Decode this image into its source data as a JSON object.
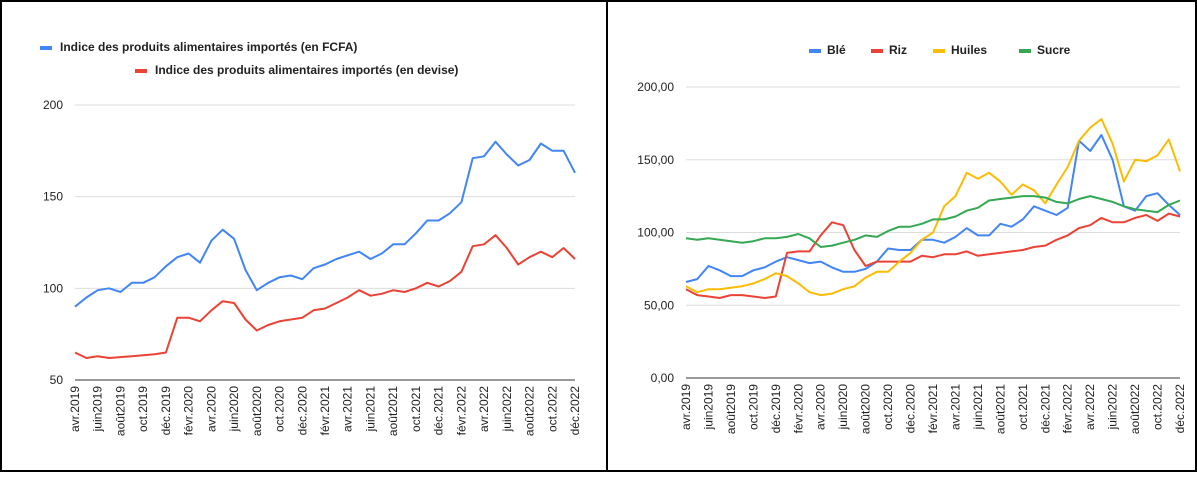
{
  "chart_data": [
    {
      "type": "line",
      "grid": true,
      "legend": "top-left",
      "categories": [
        "avr.2019",
        null,
        "juin2019",
        null,
        "août2019",
        null,
        "oct.2019",
        null,
        "déc.2019",
        null,
        "févr.2020",
        null,
        "avr.2020",
        null,
        "juin2020",
        null,
        "août2020",
        null,
        "oct.2020",
        null,
        "déc.2020",
        null,
        "févr.2021",
        null,
        "avr.2021",
        null,
        "juin2021",
        null,
        "août2021",
        null,
        "oct.2021",
        null,
        "déc.2021",
        null,
        "févr.2022",
        null,
        "avr.2022",
        null,
        "juin2022",
        null,
        "août2022",
        null,
        "oct.2022",
        null,
        "déc.2022"
      ],
      "ylim": [
        50,
        200
      ],
      "yticks": [
        50,
        100,
        150,
        200
      ],
      "series": [
        {
          "name": "Indice des produits alimentaires importés (en FCFA)",
          "color": "#4285f4",
          "values": [
            90,
            95,
            99,
            100,
            98,
            103,
            103,
            106,
            112,
            117,
            119,
            114,
            126,
            132,
            127,
            110,
            99,
            103,
            106,
            107,
            105,
            111,
            113,
            116,
            118,
            120,
            116,
            119,
            124,
            124,
            130,
            137,
            137,
            141,
            147,
            171,
            172,
            180,
            173,
            167,
            170,
            179,
            175,
            175,
            163
          ]
        },
        {
          "name": "Indice des produits alimentaires importés (en devise)",
          "color": "#ea4335",
          "values": [
            65,
            62,
            63,
            62,
            62.5,
            63,
            63.5,
            64,
            65,
            84,
            84,
            82,
            88,
            93,
            92,
            83,
            77,
            80,
            82,
            83,
            84,
            88,
            89,
            92,
            95,
            99,
            96,
            97,
            99,
            98,
            100,
            103,
            101,
            104,
            109,
            123,
            124,
            129,
            122,
            113,
            117,
            120,
            117,
            122,
            116
          ]
        }
      ]
    },
    {
      "type": "line",
      "grid": true,
      "legend": "top",
      "categories": [
        "avr.2019",
        null,
        "juin2019",
        null,
        "août2019",
        null,
        "oct.2019",
        null,
        "déc.2019",
        null,
        "févr.2020",
        null,
        "avr.2020",
        null,
        "juin2020",
        null,
        "août2020",
        null,
        "oct.2020",
        null,
        "déc.2020",
        null,
        "févr.2021",
        null,
        "avr.2021",
        null,
        "juin2021",
        null,
        "août2021",
        null,
        "oct.2021",
        null,
        "déc.2021",
        null,
        "févr.2022",
        null,
        "avr.2022",
        null,
        "juin2022",
        null,
        "août2022",
        null,
        "oct.2022",
        null,
        "déc.2022"
      ],
      "ylim": [
        0,
        200
      ],
      "yticks": [
        {
          "value": 0,
          "label": "0,00"
        },
        {
          "value": 50,
          "label": "50,00"
        },
        {
          "value": 100,
          "label": "100,00"
        },
        {
          "value": 150,
          "label": "150,00"
        },
        {
          "value": 200,
          "label": "200,00"
        }
      ],
      "series": [
        {
          "name": "Blé",
          "color": "#4285f4",
          "values": [
            66,
            68,
            77,
            74,
            70,
            70,
            74,
            76,
            80,
            83,
            81,
            79,
            80,
            76,
            73,
            73,
            75,
            80,
            89,
            88,
            88,
            95,
            95,
            93,
            97,
            103,
            98,
            98,
            106,
            104,
            109,
            118,
            115,
            112,
            117,
            163,
            156,
            167,
            150,
            118,
            115,
            125,
            127,
            119,
            112
          ]
        },
        {
          "name": "Riz",
          "color": "#ea4335",
          "values": [
            61,
            57,
            56,
            55,
            57,
            57,
            56,
            55,
            56,
            86,
            87,
            87,
            98,
            107,
            105,
            88,
            77,
            80,
            80,
            80,
            80,
            84,
            83,
            85,
            85,
            87,
            84,
            85,
            86,
            87,
            88,
            90,
            91,
            95,
            98,
            103,
            105,
            110,
            107,
            107,
            110,
            112,
            108,
            113,
            111
          ]
        },
        {
          "name": "Huiles",
          "color": "#fbbc04",
          "values": [
            63,
            59,
            61,
            61,
            62,
            63,
            65,
            68,
            72,
            70,
            65,
            59,
            57,
            58,
            61,
            63,
            69,
            73,
            73,
            80,
            86,
            95,
            100,
            118,
            125,
            141,
            137,
            141,
            135,
            126,
            133,
            129,
            120,
            133,
            145,
            163,
            172,
            178,
            161,
            135,
            150,
            149,
            153,
            164,
            142
          ]
        },
        {
          "name": "Sucre",
          "color": "#34a853",
          "values": [
            96,
            95,
            96,
            95,
            94,
            93,
            94,
            96,
            96,
            97,
            99,
            96,
            90,
            91,
            93,
            95,
            98,
            97,
            101,
            104,
            104,
            106,
            109,
            109,
            111,
            115,
            117,
            122,
            123,
            124,
            125,
            125,
            124,
            121,
            120,
            123,
            125,
            123,
            121,
            118,
            116,
            115,
            114,
            119,
            122
          ]
        }
      ]
    }
  ]
}
